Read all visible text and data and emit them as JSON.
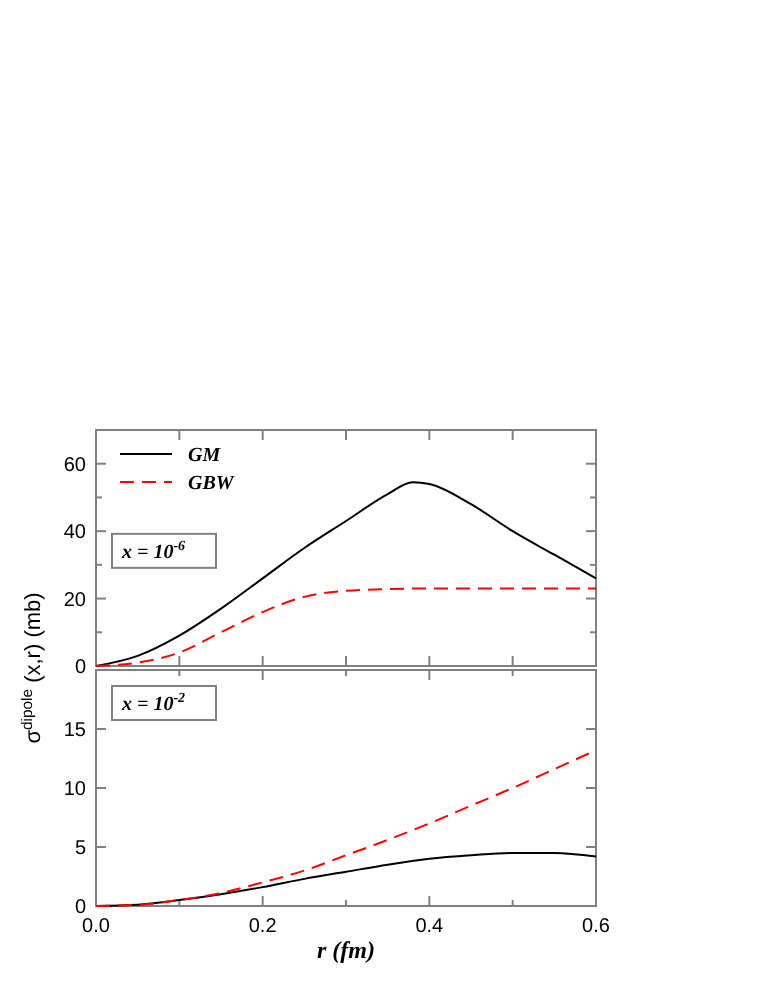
{
  "chart_data": [
    {
      "type": "line",
      "ylabel": "σ$^{dipole}$ (x,r) (mb)",
      "annotations": [
        "x = 10$^{-6}$"
      ],
      "legend": "top left",
      "tick_labels": "y",
      "xlim": [
        0,
        0.6
      ],
      "xticks": [
        {
          "value": 0,
          "label": null
        },
        {
          "value": 0.1,
          "label": null
        },
        {
          "value": 0.2,
          "label": null
        },
        {
          "value": 0.3,
          "label": null
        },
        {
          "value": 0.4,
          "label": null
        },
        {
          "value": 0.5,
          "label": null
        },
        {
          "value": 0.6,
          "label": null
        }
      ],
      "ylim": [
        0,
        70
      ],
      "yticks": [
        0,
        {
          "value": 10,
          "label": null
        },
        20,
        {
          "value": 30,
          "label": null
        },
        40,
        {
          "value": 50,
          "label": null
        },
        60
      ],
      "series": [
        {
          "name": "GM",
          "color": "#000000",
          "line_style": "solid",
          "x": [
            0,
            0.05,
            0.1,
            0.15,
            0.2,
            0.25,
            0.3,
            0.35,
            0.38,
            0.4,
            0.45,
            0.5,
            0.55,
            0.6
          ],
          "values": [
            0,
            3,
            9,
            17,
            26,
            35,
            43,
            51,
            54.5,
            54,
            48,
            40,
            33,
            26
          ]
        },
        {
          "name": "GBW",
          "color": "#ff0000",
          "line_style": "dashed",
          "x": [
            0,
            0.05,
            0.1,
            0.15,
            0.2,
            0.25,
            0.3,
            0.35,
            0.4,
            0.5,
            0.6
          ],
          "values": [
            0,
            1,
            4,
            10,
            16,
            20.5,
            22.3,
            22.8,
            23,
            23,
            23
          ]
        }
      ]
    },
    {
      "type": "line",
      "xlabel": "r (fm)",
      "annotations": [
        "x = 10$^{-2}$"
      ],
      "xlim": [
        0,
        0.6
      ],
      "xticks": [
        {
          "value": 0,
          "label": "0.0"
        },
        {
          "value": 0.1,
          "label": null
        },
        0.2,
        {
          "value": 0.3,
          "label": null
        },
        0.4,
        {
          "value": 0.5,
          "label": null
        },
        0.6
      ],
      "ylim": [
        0,
        20
      ],
      "yticks": [
        0,
        5,
        10,
        15
      ],
      "series": [
        {
          "color": "#000000",
          "line_style": "solid",
          "x": [
            0,
            0.05,
            0.1,
            0.15,
            0.2,
            0.25,
            0.3,
            0.35,
            0.4,
            0.45,
            0.5,
            0.55,
            0.6
          ],
          "values": [
            0,
            0.1,
            0.5,
            1,
            1.6,
            2.3,
            2.9,
            3.5,
            4,
            4.3,
            4.5,
            4.5,
            4.2
          ]
        },
        {
          "color": "#ff0000",
          "line_style": "dashed",
          "x": [
            0,
            0.05,
            0.1,
            0.15,
            0.2,
            0.25,
            0.3,
            0.35,
            0.4,
            0.45,
            0.5,
            0.55,
            0.6
          ],
          "values": [
            0,
            0.1,
            0.5,
            1.1,
            2,
            3,
            4.3,
            5.6,
            7,
            8.5,
            10,
            11.6,
            13.2
          ]
        }
      ]
    }
  ]
}
